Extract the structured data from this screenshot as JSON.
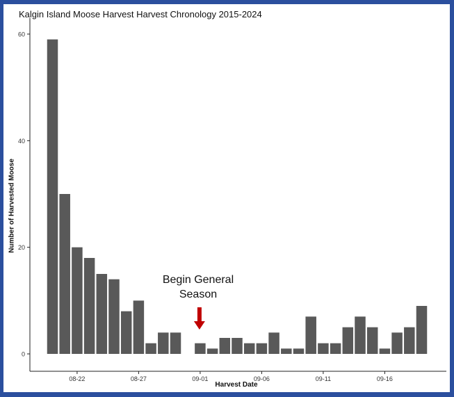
{
  "chart_data": {
    "type": "bar",
    "title": "Kalgin Island Moose Harvest Harvest Chronology 2015-2024",
    "xlabel": "Harvest Date",
    "ylabel": "Number of Harvested Moose",
    "ylim": [
      0,
      60
    ],
    "yticks": [
      0,
      20,
      40,
      60
    ],
    "xticks": [
      "08-22",
      "08-27",
      "09-01",
      "09-06",
      "09-11",
      "09-16"
    ],
    "grid": false,
    "bar_color": "#595959",
    "annotation": {
      "text_line1": "Begin General",
      "text_line2": "Season",
      "at": "09-01",
      "arrow_color": "#c00000"
    },
    "categories": [
      "08-20",
      "08-21",
      "08-22",
      "08-23",
      "08-24",
      "08-25",
      "08-26",
      "08-27",
      "08-28",
      "08-29",
      "08-30",
      "08-31",
      "09-01",
      "09-02",
      "09-03",
      "09-04",
      "09-05",
      "09-06",
      "09-07",
      "09-08",
      "09-09",
      "09-10",
      "09-11",
      "09-12",
      "09-13",
      "09-14",
      "09-15",
      "09-16",
      "09-17",
      "09-18",
      "09-19"
    ],
    "values": [
      59,
      30,
      20,
      18,
      15,
      14,
      8,
      10,
      2,
      4,
      4,
      0,
      2,
      1,
      3,
      3,
      2,
      2,
      4,
      1,
      1,
      7,
      2,
      2,
      5,
      7,
      5,
      1,
      4,
      5,
      9
    ]
  }
}
